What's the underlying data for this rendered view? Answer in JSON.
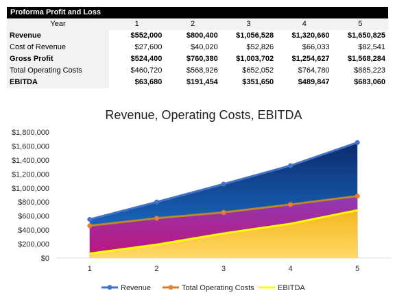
{
  "table": {
    "title": "Proforma Profit and Loss",
    "header_label": "Year",
    "years": [
      "1",
      "2",
      "3",
      "4",
      "5"
    ],
    "rows": [
      {
        "label": "Revenue",
        "bold": true,
        "values": [
          "$552,000",
          "$800,400",
          "$1,056,528",
          "$1,320,660",
          "$1,650,825"
        ]
      },
      {
        "label": "Cost of Revenue",
        "bold": false,
        "values": [
          "$27,600",
          "$40,020",
          "$52,826",
          "$66,033",
          "$82,541"
        ]
      },
      {
        "label": "Gross Profit",
        "bold": true,
        "values": [
          "$524,400",
          "$760,380",
          "$1,003,702",
          "$1,254,627",
          "$1,568,284"
        ]
      },
      {
        "label": "Total Operating Costs",
        "bold": false,
        "values": [
          "$460,720",
          "$568,926",
          "$652,052",
          "$764,780",
          "$885,223"
        ]
      },
      {
        "label": "EBITDA",
        "bold": true,
        "values": [
          "$63,680",
          "$191,454",
          "$351,650",
          "$489,847",
          "$683,060"
        ]
      }
    ]
  },
  "chart_data": {
    "type": "area",
    "title": "Revenue, Operating Costs, EBITDA",
    "categories": [
      "1",
      "2",
      "3",
      "4",
      "5"
    ],
    "ylim": [
      0,
      1800000
    ],
    "yticks": [
      0,
      200000,
      400000,
      600000,
      800000,
      1000000,
      1200000,
      1400000,
      1600000,
      1800000
    ],
    "ytick_labels": [
      "$0",
      "$200,000",
      "$400,000",
      "$600,000",
      "$800,000",
      "$1,000,000",
      "$1,200,000",
      "$1,400,000",
      "$1,600,000",
      "$1,800,000"
    ],
    "grid": false,
    "legend_position": "bottom",
    "series": [
      {
        "name": "Revenue",
        "values": [
          552000,
          800400,
          1056528,
          1320660,
          1650825
        ],
        "line_color": "#4472c4",
        "fill_top": "#0d2b6e",
        "fill_bottom": "#1d7bd6"
      },
      {
        "name": "Total Operating Costs",
        "values": [
          460720,
          568926,
          652052,
          764780,
          885223
        ],
        "line_color": "#c0862a",
        "fill_top": "#8e3bb5",
        "fill_bottom": "#c0137a"
      },
      {
        "name": "EBITDA",
        "values": [
          63680,
          191454,
          351650,
          489847,
          683060
        ],
        "line_color": "#ffff00",
        "fill_top": "#f4b81f",
        "fill_bottom": "#ffd966"
      }
    ],
    "marker_colors": [
      "#4472c4",
      "#ed7d31",
      "#ffff00"
    ]
  }
}
